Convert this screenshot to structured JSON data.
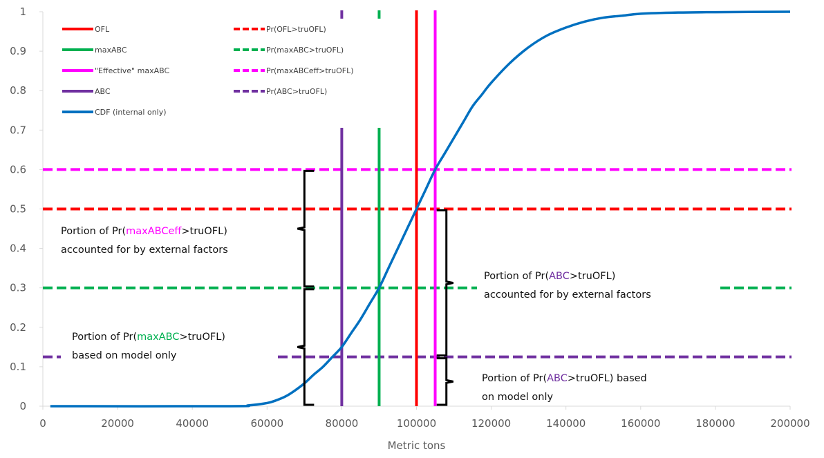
{
  "chart_data": {
    "type": "line",
    "title": "",
    "xlabel": "Metric tons",
    "ylabel": "",
    "xlim": [
      0,
      200000
    ],
    "ylim": [
      0,
      1
    ],
    "x_ticks": [
      "0",
      "20000",
      "40000",
      "60000",
      "80000",
      "100000",
      "120000",
      "140000",
      "160000",
      "180000",
      "200000"
    ],
    "y_ticks": [
      "0",
      "0.1",
      "0.2",
      "0.3",
      "0.4",
      "0.5",
      "0.6",
      "0.7",
      "0.8",
      "0.9",
      "1"
    ],
    "grid": "none",
    "legend_placement": "top-left",
    "colors": {
      "ofl": "#ff0000",
      "maxabc": "#00b050",
      "effective": "#ff00ff",
      "abc": "#7030a0",
      "cdf": "#0070c0",
      "axis": "#d9d9d9",
      "text": "#595959"
    },
    "series": [
      {
        "name": "CDF (internal only)",
        "style": "solid",
        "color_key": "cdf",
        "x": [
          2000,
          50000,
          55000,
          60000,
          62500,
          65000,
          67500,
          70000,
          72500,
          75000,
          77500,
          80000,
          82500,
          85000,
          87500,
          90000,
          92500,
          95000,
          97500,
          100000,
          102500,
          105000,
          107500,
          110000,
          112500,
          115000,
          117500,
          120000,
          125000,
          130000,
          135000,
          140000,
          145000,
          150000,
          155000,
          160000,
          170000,
          180000,
          200000
        ],
        "y": [
          0,
          0,
          0.002,
          0.008,
          0.015,
          0.025,
          0.04,
          0.058,
          0.08,
          0.1,
          0.125,
          0.15,
          0.185,
          0.22,
          0.26,
          0.3,
          0.35,
          0.4,
          0.45,
          0.5,
          0.55,
          0.6,
          0.64,
          0.68,
          0.72,
          0.76,
          0.79,
          0.82,
          0.87,
          0.91,
          0.94,
          0.96,
          0.975,
          0.985,
          0.99,
          0.995,
          0.998,
          0.999,
          1
        ]
      },
      {
        "name": "OFL",
        "style": "solid",
        "orientation": "vertical",
        "color_key": "ofl",
        "x": 100000
      },
      {
        "name": "maxABC",
        "style": "solid",
        "orientation": "vertical",
        "color_key": "maxabc",
        "x": 90000
      },
      {
        "name": "\"Effective\" maxABC",
        "style": "solid",
        "orientation": "vertical",
        "color_key": "effective",
        "x": 105000
      },
      {
        "name": "ABC",
        "style": "solid",
        "orientation": "vertical",
        "color_key": "abc",
        "x": 80000
      },
      {
        "name": "Pr(OFL>truOFL)",
        "style": "dashed",
        "orientation": "horizontal",
        "color_key": "ofl",
        "y": 0.5
      },
      {
        "name": "Pr(maxABC>truOFL)",
        "style": "dashed",
        "orientation": "horizontal",
        "color_key": "maxabc",
        "y": 0.3
      },
      {
        "name": "Pr(maxABCeff>truOFL)",
        "style": "dashed",
        "orientation": "horizontal",
        "color_key": "effective",
        "y": 0.6
      },
      {
        "name": "Pr(ABC>truOFL)",
        "style": "dashed",
        "orientation": "horizontal",
        "color_key": "abc",
        "y": 0.125
      }
    ],
    "annotations": [
      {
        "id": "maxabceff-external",
        "lines": [
          [
            {
              "t": "Portion of Pr(",
              "c": "text"
            },
            {
              "t": "maxABCeff",
              "c": "effective"
            },
            {
              "t": ">truOFL)",
              "c": "text"
            }
          ],
          [
            {
              "t": "accounted for by external factors",
              "c": "text"
            }
          ]
        ]
      },
      {
        "id": "maxabc-model",
        "lines": [
          [
            {
              "t": "Portion of Pr(",
              "c": "text"
            },
            {
              "t": "maxABC",
              "c": "maxabc"
            },
            {
              "t": ">truOFL)",
              "c": "text"
            }
          ],
          [
            {
              "t": "based on model only",
              "c": "text"
            }
          ]
        ]
      },
      {
        "id": "abc-external",
        "lines": [
          [
            {
              "t": "Portion of Pr(",
              "c": "text"
            },
            {
              "t": "ABC",
              "c": "abc"
            },
            {
              "t": ">truOFL)",
              "c": "text"
            }
          ],
          [
            {
              "t": "accounted for by external factors",
              "c": "text"
            }
          ]
        ]
      },
      {
        "id": "abc-model",
        "lines": [
          [
            {
              "t": "Portion of Pr(",
              "c": "text"
            },
            {
              "t": "ABC",
              "c": "abc"
            },
            {
              "t": ">truOFL) based",
              "c": "text"
            }
          ],
          [
            {
              "t": "on model only",
              "c": "text"
            }
          ]
        ]
      }
    ],
    "braces": [
      {
        "id": "maxabceff-minus-maxabc",
        "x": 70000,
        "y_from": 0.3,
        "y_to": 0.6,
        "opens": "right"
      },
      {
        "id": "maxabc-model-brace",
        "x": 70000,
        "y_from": 0,
        "y_to": 0.3,
        "opens": "right"
      },
      {
        "id": "abc-external-brace",
        "x": 108000,
        "y_from": 0.125,
        "y_to": 0.5,
        "opens": "left"
      },
      {
        "id": "abc-model-brace",
        "x": 108000,
        "y_from": 0,
        "y_to": 0.125,
        "opens": "left"
      }
    ]
  }
}
